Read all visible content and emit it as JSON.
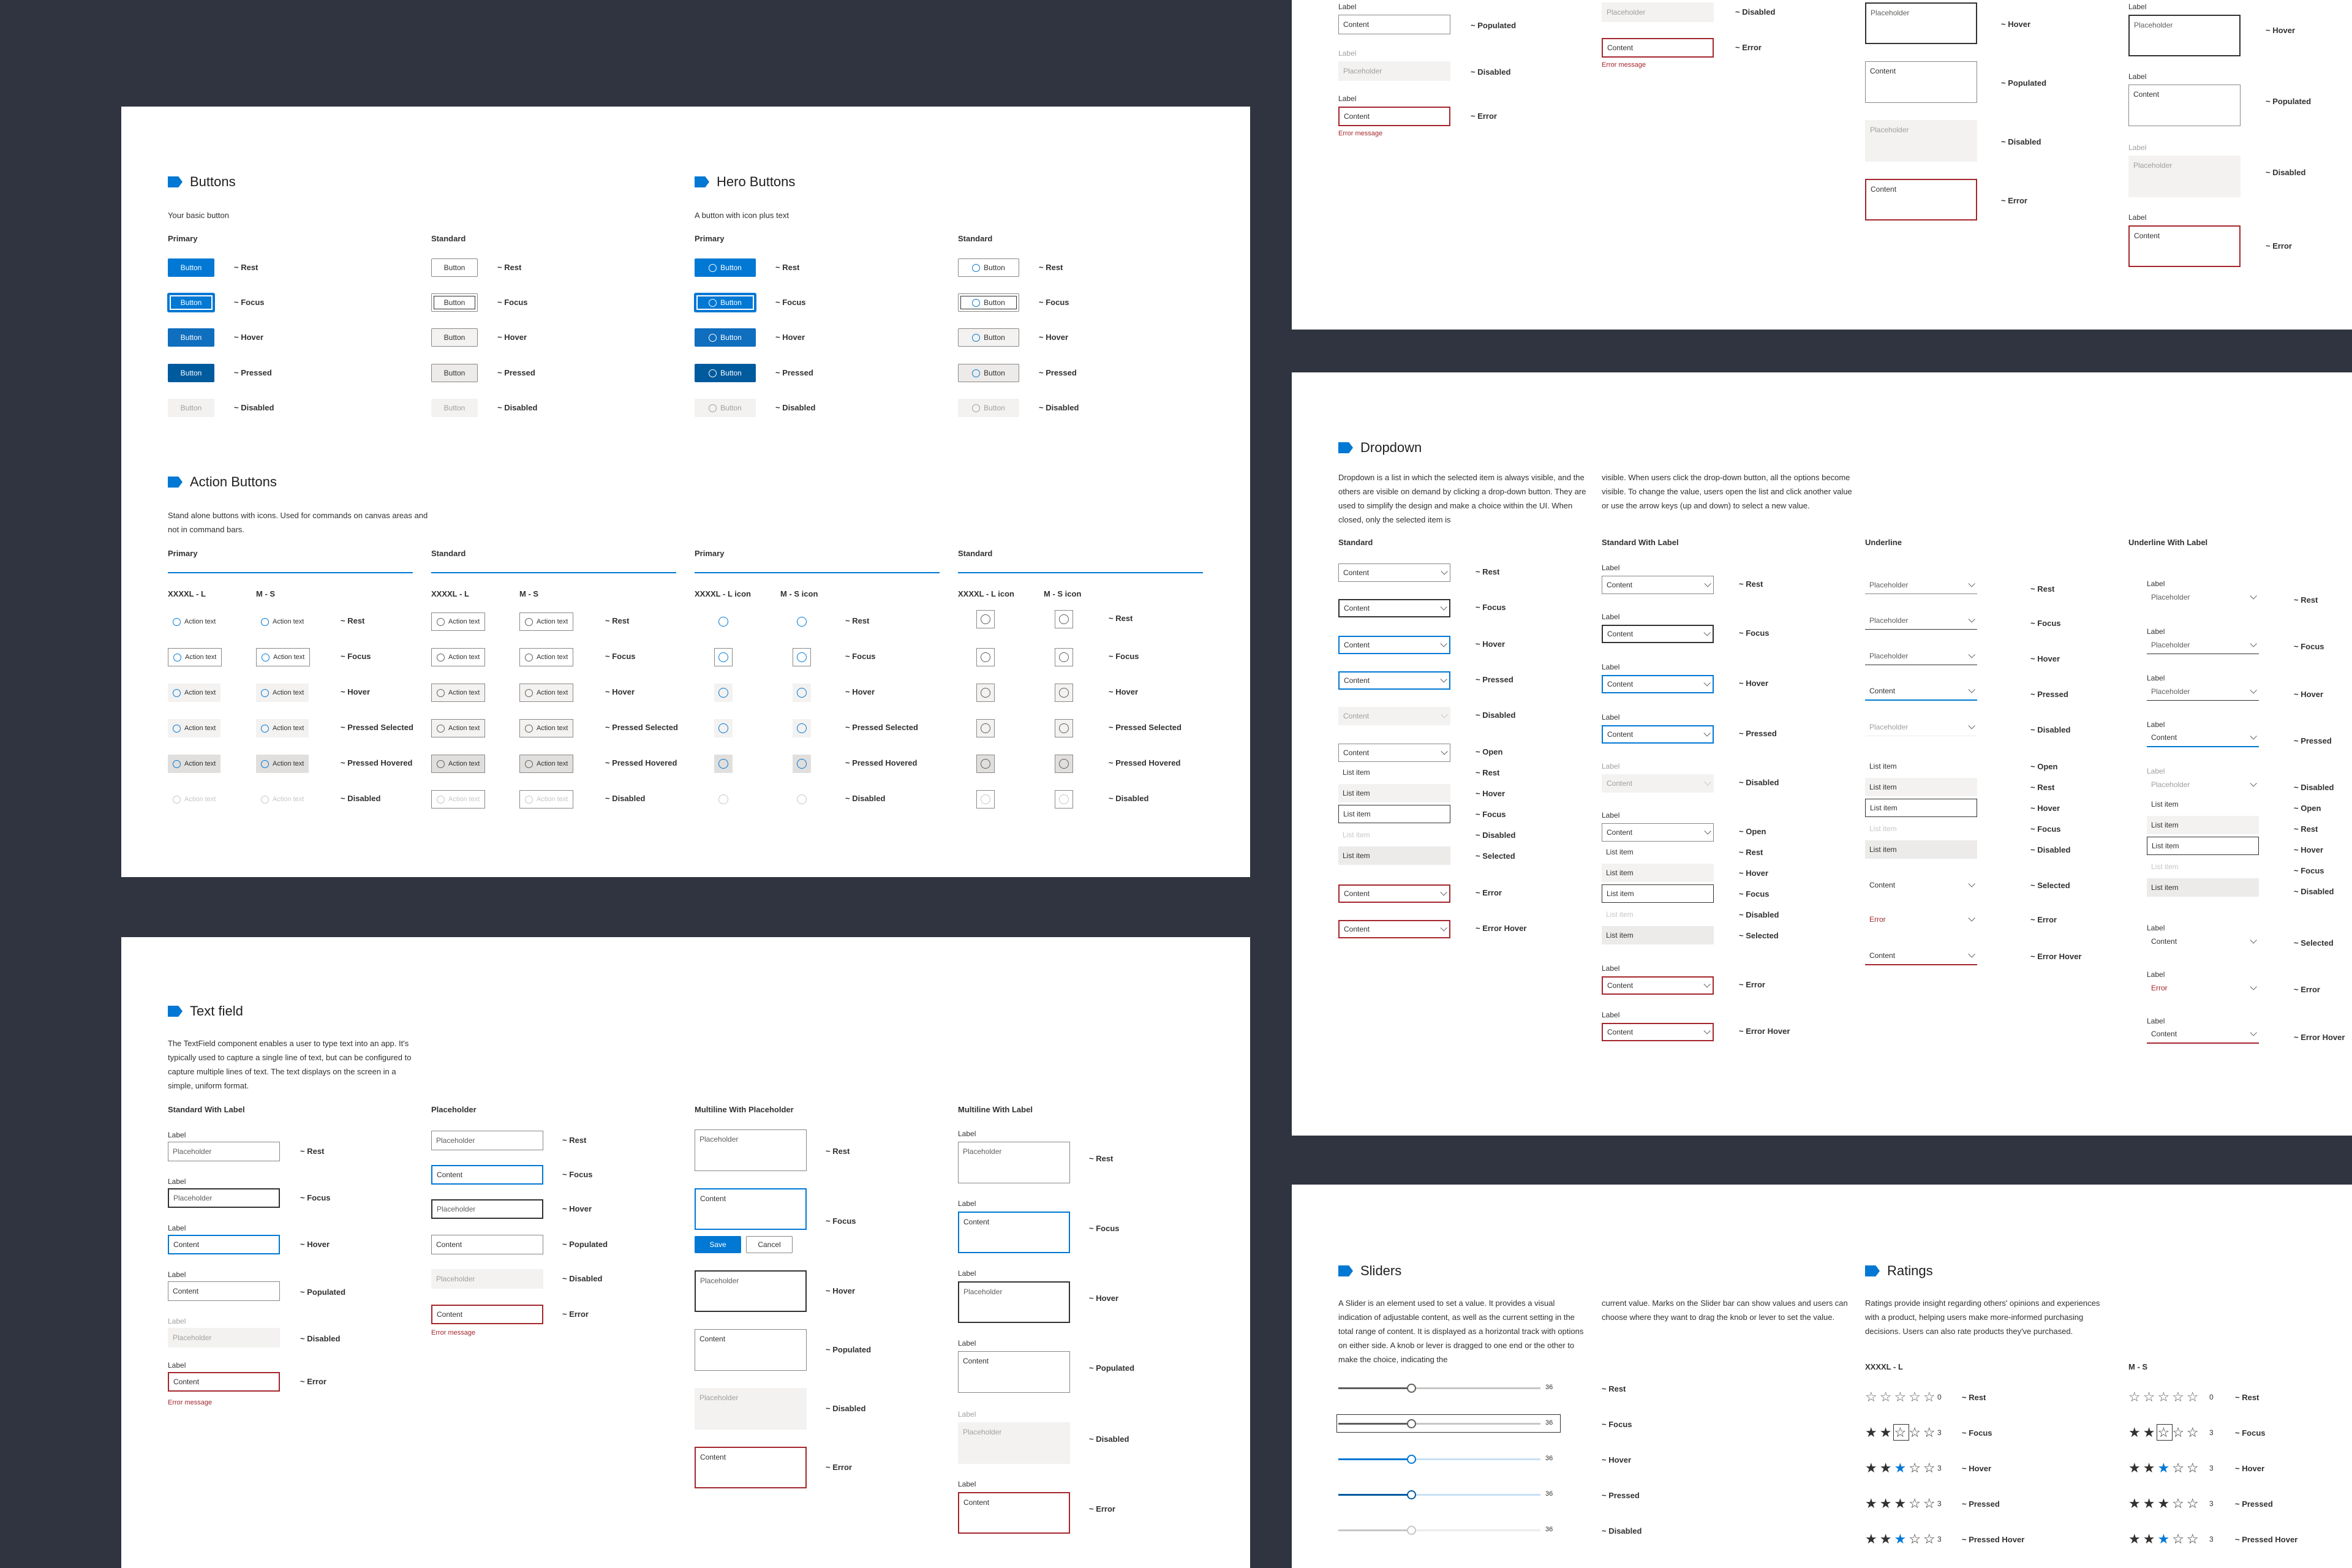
{
  "buttons": {
    "title": "Buttons",
    "desc": "Your basic button",
    "primary_label": "Primary",
    "standard_label": "Standard",
    "button_text": "Button",
    "states": [
      "~ Rest",
      "~ Focus",
      "~ Hover",
      "~ Pressed",
      "~ Disabled"
    ]
  },
  "hero": {
    "title": "Hero Buttons",
    "desc": "A button with icon plus text",
    "primary_label": "Primary",
    "standard_label": "Standard",
    "button_text": "Button"
  },
  "action": {
    "title": "Action Buttons",
    "desc": "Stand alone buttons with icons. Used for commands on canvas areas and not in command bars.",
    "primary_label": "Primary",
    "standard_label": "Standard",
    "size_l": "XXXXL - L",
    "size_m": "M - S",
    "size_l_icon": "XXXXL - L icon",
    "size_m_icon": "M - S icon",
    "action_text": "Action text",
    "states": [
      "~ Rest",
      "~ Focus",
      "~ Hover",
      "~ Pressed Selected",
      "~ Pressed Hovered",
      "~ Disabled"
    ]
  },
  "textfield": {
    "title": "Text field",
    "desc": "The TextField component enables a user to type text into an app. It's typically used to capture a single line of text, but can be configured to capture multiple lines of text. The text displays on the screen in a simple, uniform format.",
    "col1": "Standard With Label",
    "col2": "Placeholder",
    "col3": "Multiline With Placeholder",
    "col4": "Multiline With Label",
    "label": "Label",
    "placeholder": "Placeholder",
    "content": "Content",
    "error_message": "Error message",
    "save": "Save",
    "cancel": "Cancel",
    "states_std": [
      "~ Rest",
      "~ Focus",
      "~ Hover",
      "~ Populated",
      "~ Disabled",
      "~ Error"
    ]
  },
  "dropdown": {
    "title": "Dropdown",
    "desc1": "Dropdown is a list in which the selected item is always visible, and the others are visible on demand by clicking a drop-down button. They are used to simplify the design and make a choice within the UI. When closed, only the selected item is",
    "desc2": "visible. When users click the drop-down button, all the options become visible. To change the value, users open the list and click another value or use the arrow keys (up and down) to select a new value.",
    "col1": "Standard",
    "col2": "Standard With Label",
    "col3": "Underline",
    "col4": "Underline With Label",
    "content": "Content",
    "placeholder": "Placeholder",
    "label": "Label",
    "list_item": "List item",
    "error": "Error",
    "states_top": [
      "~ Rest",
      "~ Focus",
      "~ Hover",
      "~ Pressed",
      "~ Disabled"
    ],
    "states_list": [
      "~ Open",
      "~ Rest",
      "~ Hover",
      "~ Focus",
      "~ Disabled",
      "~ Selected"
    ],
    "states_err": [
      "~ Error",
      "~ Error Hover"
    ]
  },
  "sliders": {
    "title": "Sliders",
    "desc1": "A Slider is an element used to set a value. It provides a visual indication of adjustable content, as well as the current setting in the total range of content. It is displayed as a horizontal track with options on either side. A knob or lever is dragged to one end or the other to make the choice, indicating the",
    "desc2": "current value. Marks on the Slider bar can show values and users can choose where they want to drag the knob or lever to set the value.",
    "value": "36",
    "value_fraction": 0.36,
    "states": [
      "~ Rest",
      "~ Focus",
      "~ Hover",
      "~ Pressed",
      "~ Disabled"
    ]
  },
  "ratings": {
    "title": "Ratings",
    "desc": "Ratings provide insight regarding others' opinions and experiences with a product, helping users make more-informed purchasing decisions. Users can also rate products they've purchased.",
    "size_l": "XXXXL - L",
    "size_m": "M - S",
    "values": [
      "0",
      "3",
      "3",
      "3",
      "3"
    ],
    "states": [
      "~ Rest",
      "~ Focus",
      "~ Hover",
      "~ Pressed",
      "~ Pressed Hover"
    ]
  },
  "tf_top": {
    "label": "Label",
    "content": "Content",
    "placeholder": "Placeholder",
    "error_message": "Error message",
    "states_a": [
      "~ Populated",
      "~ Disabled",
      "~ Error"
    ],
    "states_b": [
      "~ Disabled",
      "~ Error"
    ],
    "states_c": [
      "~ Hover",
      "~ Populated",
      "~ Disabled",
      "~ Error"
    ]
  },
  "colors": {
    "accent": "#0078d4",
    "error": "#a4262c",
    "background": "#2f3440"
  }
}
